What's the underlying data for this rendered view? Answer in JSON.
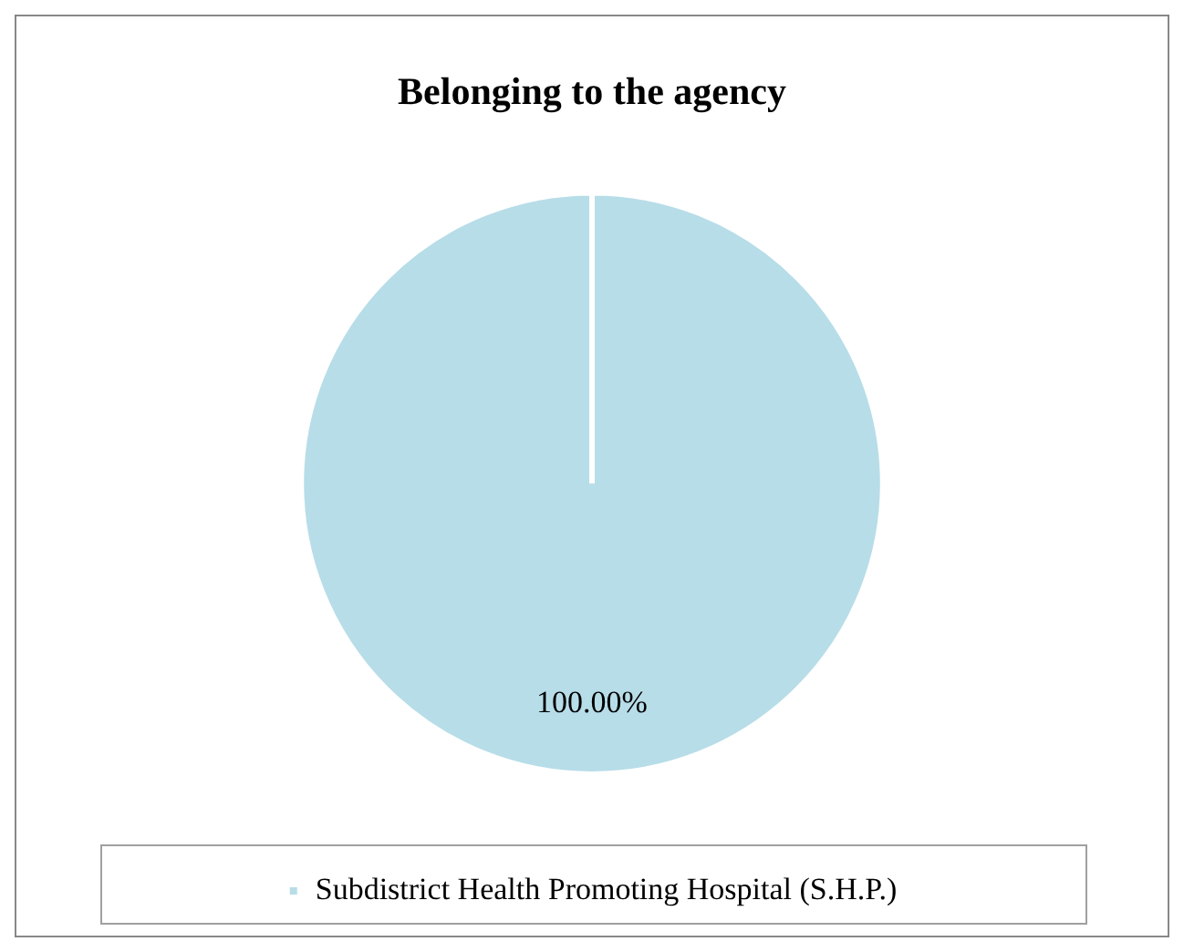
{
  "chart_data": {
    "type": "pie",
    "title": "Belonging to the agency",
    "categories": [
      "Subdistrict Health Promoting Hospital (S.H.P.)"
    ],
    "values": [
      100
    ],
    "colors": [
      "#b7dde8"
    ],
    "value_labels": [
      "100.00%"
    ],
    "legend": "bottom"
  }
}
